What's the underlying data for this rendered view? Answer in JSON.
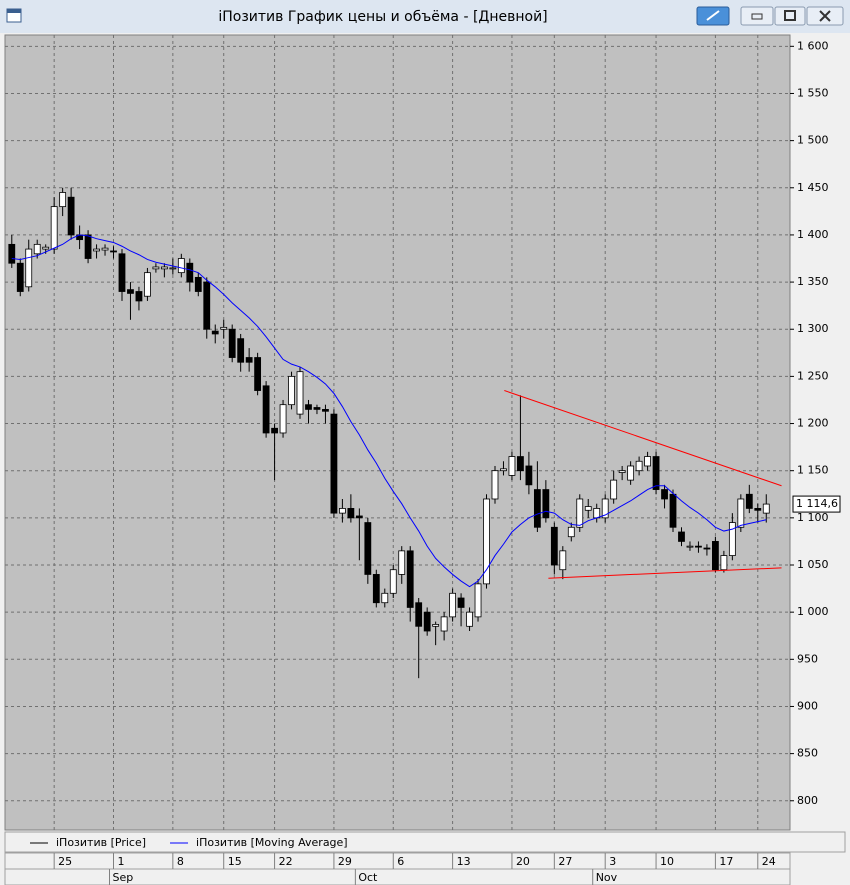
{
  "chart_data": {
    "type": "candlestick",
    "title": "iПозитив График цены и объёма - [Дневной]",
    "categories": [
      null,
      null,
      null,
      null,
      null,
      "25",
      null,
      null,
      null,
      null,
      null,
      null,
      "1",
      null,
      null,
      null,
      null,
      null,
      null,
      "8",
      null,
      null,
      null,
      null,
      null,
      "15",
      null,
      null,
      null,
      null,
      null,
      "22",
      null,
      null,
      null,
      null,
      null,
      null,
      "29",
      null,
      null,
      null,
      null,
      null,
      null,
      "6",
      null,
      null,
      null,
      null,
      null,
      null,
      "13",
      null,
      null,
      null,
      null,
      null,
      null,
      "20",
      null,
      null,
      null,
      null,
      "27",
      null,
      null,
      null,
      null,
      null,
      "3",
      null,
      null,
      null,
      null,
      null,
      "10",
      null,
      null,
      null,
      null,
      null,
      null,
      "17",
      null,
      null,
      null,
      null,
      "24",
      null
    ],
    "month_labels": [
      "Sep",
      "Oct",
      "Nov"
    ],
    "xlim": [
      -0.8,
      91.8
    ],
    "ylim": [
      769,
      1612
    ],
    "yticks": [
      800,
      850,
      900,
      950,
      {
        "value": 1000,
        "label": "1 000"
      },
      {
        "value": 1050,
        "label": "1 050"
      },
      {
        "value": 1100,
        "label": "1 100"
      },
      {
        "value": 1150,
        "label": "1 150"
      },
      {
        "value": 1200,
        "label": "1 200"
      },
      {
        "value": 1250,
        "label": "1 250"
      },
      {
        "value": 1300,
        "label": "1 300"
      },
      {
        "value": 1350,
        "label": "1 350"
      },
      {
        "value": 1400,
        "label": "1 400"
      },
      {
        "value": 1450,
        "label": "1 450"
      },
      {
        "value": 1500,
        "label": "1 500"
      },
      {
        "value": 1550,
        "label": "1 550"
      },
      {
        "value": 1600,
        "label": "1 600"
      }
    ],
    "grid": true,
    "series": [
      {
        "name": "iПозитив [Price]",
        "type": "candlestick",
        "color": "#000000",
        "up_color": "#ffffff",
        "open": [
          1390,
          1370,
          1345,
          1380,
          1385,
          1385,
          1430,
          1440,
          1400,
          1400,
          1383,
          1384,
          1383,
          1380,
          1342,
          1340,
          1335,
          1364,
          1364,
          1364,
          1360,
          1370,
          1355,
          1350,
          1298,
          1300,
          1300,
          1290,
          1270,
          1270,
          1240,
          1195,
          1190,
          1220,
          1210,
          1220,
          1217,
          1215,
          1210,
          1105,
          1110,
          1102,
          1095,
          1040,
          1010,
          1020,
          1040,
          1065,
          1010,
          1000,
          985,
          980,
          995,
          1015,
          985,
          995,
          1030,
          1120,
          1150,
          1145,
          1165,
          1155,
          1130,
          1130,
          1090,
          1045,
          1080,
          1090,
          1108,
          1100,
          1100,
          1120,
          1148,
          1140,
          1150,
          1155,
          1165,
          1130,
          1125,
          1085,
          1070,
          1070,
          1068,
          1075,
          1045,
          1060,
          1090,
          1125,
          1110,
          1105
        ],
        "high": [
          1400,
          1375,
          1395,
          1395,
          1390,
          1440,
          1450,
          1450,
          1410,
          1405,
          1390,
          1390,
          1388,
          1385,
          1350,
          1345,
          1365,
          1370,
          1370,
          1375,
          1380,
          1375,
          1360,
          1355,
          1305,
          1310,
          1305,
          1295,
          1280,
          1275,
          1245,
          1200,
          1225,
          1255,
          1260,
          1225,
          1220,
          1220,
          1215,
          1120,
          1125,
          1110,
          1100,
          1045,
          1025,
          1050,
          1070,
          1070,
          1015,
          1005,
          990,
          1000,
          1025,
          1020,
          1005,
          1035,
          1125,
          1155,
          1160,
          1170,
          1230,
          1170,
          1160,
          1140,
          1095,
          1070,
          1095,
          1125,
          1120,
          1115,
          1125,
          1150,
          1155,
          1160,
          1165,
          1170,
          1170,
          1135,
          1130,
          1090,
          1075,
          1075,
          1072,
          1080,
          1065,
          1105,
          1125,
          1135,
          1115,
          1125
        ],
        "low": [
          1365,
          1335,
          1340,
          1375,
          1380,
          1380,
          1420,
          1395,
          1385,
          1370,
          1375,
          1378,
          1375,
          1330,
          1310,
          1320,
          1330,
          1360,
          1355,
          1358,
          1355,
          1340,
          1335,
          1290,
          1285,
          1290,
          1265,
          1255,
          1255,
          1230,
          1185,
          1140,
          1185,
          1215,
          1205,
          1200,
          1210,
          1200,
          1100,
          1095,
          1095,
          1055,
          1030,
          1005,
          1005,
          1015,
          1030,
          990,
          930,
          975,
          965,
          970,
          990,
          985,
          980,
          990,
          1025,
          1115,
          1145,
          1140,
          1140,
          1125,
          1085,
          1095,
          1040,
          1035,
          1075,
          1085,
          1100,
          1095,
          1095,
          1115,
          1140,
          1135,
          1145,
          1150,
          1125,
          1110,
          1085,
          1070,
          1065,
          1063,
          1060,
          1042,
          1042,
          1055,
          1085,
          1105,
          1095,
          1095
        ],
        "close": [
          1370,
          1340,
          1385,
          1390,
          1387,
          1430,
          1445,
          1400,
          1395,
          1375,
          1385,
          1386,
          1382,
          1340,
          1338,
          1330,
          1360,
          1366,
          1366,
          1365,
          1375,
          1350,
          1340,
          1300,
          1295,
          1302,
          1270,
          1265,
          1265,
          1235,
          1190,
          1190,
          1220,
          1250,
          1255,
          1215,
          1215,
          1213,
          1105,
          1110,
          1100,
          1100,
          1040,
          1010,
          1020,
          1045,
          1065,
          1005,
          985,
          980,
          987,
          995,
          1020,
          1005,
          1000,
          1030,
          1120,
          1150,
          1152,
          1165,
          1150,
          1135,
          1090,
          1100,
          1050,
          1065,
          1090,
          1120,
          1112,
          1110,
          1120,
          1140,
          1150,
          1155,
          1160,
          1165,
          1130,
          1120,
          1090,
          1075,
          1070,
          1069,
          1067,
          1045,
          1060,
          1095,
          1120,
          1110,
          1108,
          1114.6
        ]
      },
      {
        "name": "iПозитив [Moving Average]",
        "type": "line",
        "color": "#0000ff",
        "values": [
          1375,
          1374,
          1376,
          1378,
          1382,
          1386,
          1390,
          1396,
          1400,
          1399,
          1396,
          1394,
          1392,
          1388,
          1383,
          1379,
          1374,
          1371,
          1369,
          1367,
          1365,
          1363,
          1360,
          1352,
          1345,
          1337,
          1328,
          1320,
          1312,
          1303,
          1292,
          1280,
          1268,
          1263,
          1260,
          1255,
          1249,
          1242,
          1232,
          1218,
          1202,
          1188,
          1172,
          1158,
          1142,
          1128,
          1115,
          1100,
          1086,
          1070,
          1057,
          1048,
          1040,
          1033,
          1027,
          1033,
          1045,
          1060,
          1072,
          1085,
          1093,
          1100,
          1104,
          1107,
          1105,
          1098,
          1093,
          1092,
          1097,
          1100,
          1103,
          1108,
          1113,
          1118,
          1124,
          1130,
          1134,
          1134,
          1126,
          1118,
          1111,
          1105,
          1098,
          1090,
          1086,
          1088,
          1092,
          1094,
          1096,
          1098
        ]
      }
    ],
    "last_price": {
      "value": 1114.6,
      "label": "1 114,6"
    },
    "trendlines": [
      {
        "color": "#ff0000",
        "x": [
          58.1,
          90.8
        ],
        "y": [
          1235,
          1134
        ]
      },
      {
        "color": "#ff0000",
        "x": [
          63.3,
          90.8
        ],
        "y": [
          1036,
          1047
        ]
      }
    ]
  }
}
